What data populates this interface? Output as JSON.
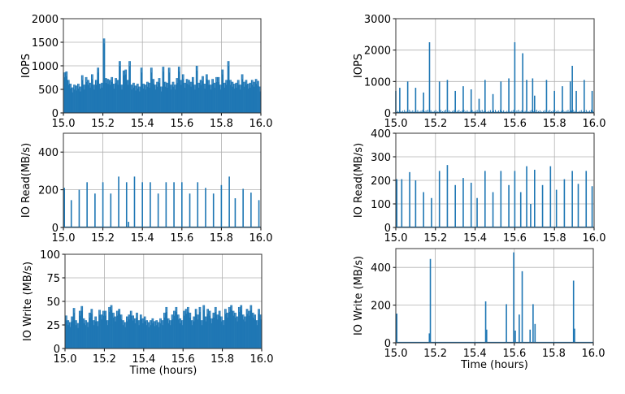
{
  "chart_data": [
    {
      "id": "iops-left",
      "type": "bar",
      "ylabel": "IOPS",
      "xlabel": "",
      "xlim": [
        15.0,
        16.0
      ],
      "ylim": [
        0,
        2000
      ],
      "xticks": [
        "15.0",
        "15.2",
        "15.4",
        "15.6",
        "15.8",
        "16.0"
      ],
      "yticks": [
        "0",
        "500",
        "1000",
        "1500",
        "2000"
      ],
      "grid": true,
      "dense_values": [
        860,
        880,
        700,
        620,
        540,
        600,
        580,
        620,
        560,
        800,
        600,
        760,
        700,
        640,
        820,
        600,
        700,
        960,
        620,
        640,
        1580,
        740,
        720,
        700,
        760,
        620,
        740,
        700,
        1100,
        600,
        900,
        920,
        700,
        1100,
        600,
        640,
        580,
        620,
        560,
        960,
        620,
        600,
        660,
        640,
        960,
        720,
        600,
        660,
        740,
        560,
        980,
        660,
        640,
        960,
        600,
        660,
        600,
        740,
        980,
        700,
        820,
        640,
        720,
        700,
        660,
        760,
        600,
        1000,
        640,
        700,
        780,
        620,
        820,
        700,
        600,
        720,
        640,
        760,
        760,
        600,
        920,
        640,
        700,
        1100,
        700,
        660,
        620,
        640,
        700,
        600,
        820,
        660,
        700,
        620,
        640,
        700,
        660,
        720,
        680,
        560
      ]
    },
    {
      "id": "iops-right",
      "type": "bar",
      "ylabel": "IOPS",
      "xlabel": "",
      "xlim": [
        15.0,
        16.0
      ],
      "ylim": [
        0,
        3000
      ],
      "xticks": [
        "15.0",
        "15.2",
        "15.4",
        "15.6",
        "15.8",
        "16.0"
      ],
      "yticks": [
        "0",
        "1000",
        "2000",
        "3000"
      ],
      "grid": true,
      "baseline": 100,
      "spikes": [
        [
          15.0,
          700
        ],
        [
          15.02,
          800
        ],
        [
          15.06,
          1000
        ],
        [
          15.1,
          800
        ],
        [
          15.14,
          650
        ],
        [
          15.17,
          2250
        ],
        [
          15.22,
          1000
        ],
        [
          15.26,
          1050
        ],
        [
          15.3,
          700
        ],
        [
          15.34,
          850
        ],
        [
          15.38,
          750
        ],
        [
          15.42,
          450
        ],
        [
          15.45,
          1050
        ],
        [
          15.49,
          600
        ],
        [
          15.53,
          1000
        ],
        [
          15.57,
          1100
        ],
        [
          15.6,
          2250
        ],
        [
          15.64,
          1900
        ],
        [
          15.66,
          1050
        ],
        [
          15.69,
          1100
        ],
        [
          15.7,
          550
        ],
        [
          15.76,
          1050
        ],
        [
          15.8,
          700
        ],
        [
          15.84,
          850
        ],
        [
          15.88,
          1000
        ],
        [
          15.89,
          1500
        ],
        [
          15.91,
          700
        ],
        [
          15.95,
          1050
        ],
        [
          15.99,
          700
        ]
      ]
    },
    {
      "id": "read-left",
      "type": "bar",
      "ylabel": "IO Read(MB/s)",
      "xlabel": "",
      "xlim": [
        15.0,
        16.0
      ],
      "ylim": [
        0,
        500
      ],
      "xticks": [
        "15.0",
        "15.2",
        "15.4",
        "15.6",
        "15.8",
        "16.0"
      ],
      "yticks": [
        "0",
        "200",
        "400"
      ],
      "grid": true,
      "spikes": [
        [
          15.005,
          210
        ],
        [
          15.04,
          145
        ],
        [
          15.08,
          200
        ],
        [
          15.12,
          240
        ],
        [
          15.16,
          180
        ],
        [
          15.2,
          240
        ],
        [
          15.24,
          180
        ],
        [
          15.28,
          270
        ],
        [
          15.32,
          240
        ],
        [
          15.33,
          30
        ],
        [
          15.36,
          270
        ],
        [
          15.4,
          240
        ],
        [
          15.44,
          240
        ],
        [
          15.48,
          180
        ],
        [
          15.52,
          240
        ],
        [
          15.56,
          240
        ],
        [
          15.6,
          240
        ],
        [
          15.64,
          180
        ],
        [
          15.68,
          240
        ],
        [
          15.72,
          210
        ],
        [
          15.76,
          180
        ],
        [
          15.8,
          225
        ],
        [
          15.84,
          270
        ],
        [
          15.87,
          155
        ],
        [
          15.91,
          205
        ],
        [
          15.95,
          185
        ],
        [
          15.99,
          145
        ]
      ]
    },
    {
      "id": "read-right",
      "type": "bar",
      "ylabel": "IO Read(MB/s)",
      "xlabel": "",
      "xlim": [
        15.0,
        16.0
      ],
      "ylim": [
        0,
        400
      ],
      "xticks": [
        "15.0",
        "15.2",
        "15.4",
        "15.6",
        "15.8",
        "16.0"
      ],
      "yticks": [
        "0",
        "100",
        "200",
        "300",
        "400"
      ],
      "grid": true,
      "spikes": [
        [
          15.005,
          205
        ],
        [
          15.03,
          205
        ],
        [
          15.07,
          235
        ],
        [
          15.1,
          200
        ],
        [
          15.14,
          150
        ],
        [
          15.18,
          125
        ],
        [
          15.22,
          240
        ],
        [
          15.26,
          265
        ],
        [
          15.3,
          180
        ],
        [
          15.34,
          210
        ],
        [
          15.38,
          190
        ],
        [
          15.41,
          125
        ],
        [
          15.45,
          240
        ],
        [
          15.49,
          150
        ],
        [
          15.53,
          240
        ],
        [
          15.57,
          180
        ],
        [
          15.6,
          240
        ],
        [
          15.63,
          150
        ],
        [
          15.66,
          260
        ],
        [
          15.68,
          100
        ],
        [
          15.7,
          245
        ],
        [
          15.74,
          180
        ],
        [
          15.78,
          260
        ],
        [
          15.81,
          160
        ],
        [
          15.85,
          205
        ],
        [
          15.89,
          240
        ],
        [
          15.92,
          185
        ],
        [
          15.96,
          240
        ],
        [
          15.99,
          175
        ]
      ]
    },
    {
      "id": "write-left",
      "type": "bar",
      "ylabel": "IO Write (MB/s)",
      "xlabel": "Time (hours)",
      "xlim": [
        15.0,
        16.0
      ],
      "ylim": [
        0,
        100
      ],
      "xticks": [
        "15.0",
        "15.2",
        "15.4",
        "15.6",
        "15.8",
        "16.0"
      ],
      "yticks": [
        "0",
        "25",
        "50",
        "75",
        "100"
      ],
      "grid": true,
      "dense_values": [
        35,
        30,
        28,
        34,
        43,
        30,
        27,
        40,
        45,
        32,
        30,
        28,
        38,
        42,
        30,
        34,
        29,
        41,
        36,
        40,
        40,
        30,
        44,
        46,
        38,
        34,
        40,
        42,
        36,
        30,
        28,
        34,
        36,
        40,
        35,
        32,
        38,
        30,
        36,
        32,
        34,
        30,
        28,
        30,
        32,
        29,
        30,
        28,
        32,
        30,
        38,
        44,
        32,
        30,
        36,
        40,
        44,
        36,
        32,
        30,
        40,
        42,
        44,
        38,
        30,
        34,
        42,
        36,
        44,
        30,
        46,
        34,
        42,
        40,
        32,
        38,
        44,
        36,
        40,
        34,
        30,
        42,
        38,
        44,
        46,
        40,
        38,
        34,
        44,
        46,
        36,
        34,
        42,
        40,
        46,
        38,
        36,
        30,
        42,
        36
      ]
    },
    {
      "id": "write-right",
      "type": "bar",
      "ylabel": "IO Write (MB/s)",
      "xlabel": "Time (hours)",
      "xlim": [
        15.0,
        16.0
      ],
      "ylim": [
        0,
        500
      ],
      "xticks": [
        "15.0",
        "15.2",
        "15.4",
        "15.6",
        "15.8",
        "16.0"
      ],
      "yticks": [
        "0",
        "200",
        "400"
      ],
      "grid": true,
      "spikes": [
        [
          15.005,
          155
        ],
        [
          15.17,
          50
        ],
        [
          15.175,
          445
        ],
        [
          15.455,
          220
        ],
        [
          15.46,
          70
        ],
        [
          15.56,
          205
        ],
        [
          15.597,
          480
        ],
        [
          15.605,
          65
        ],
        [
          15.625,
          150
        ],
        [
          15.64,
          380
        ],
        [
          15.68,
          70
        ],
        [
          15.695,
          205
        ],
        [
          15.705,
          100
        ],
        [
          15.9,
          330
        ],
        [
          15.905,
          75
        ]
      ]
    }
  ],
  "colors": {
    "series": "#1f77b4",
    "grid": "#b0b0b0",
    "axis": "#333333"
  }
}
